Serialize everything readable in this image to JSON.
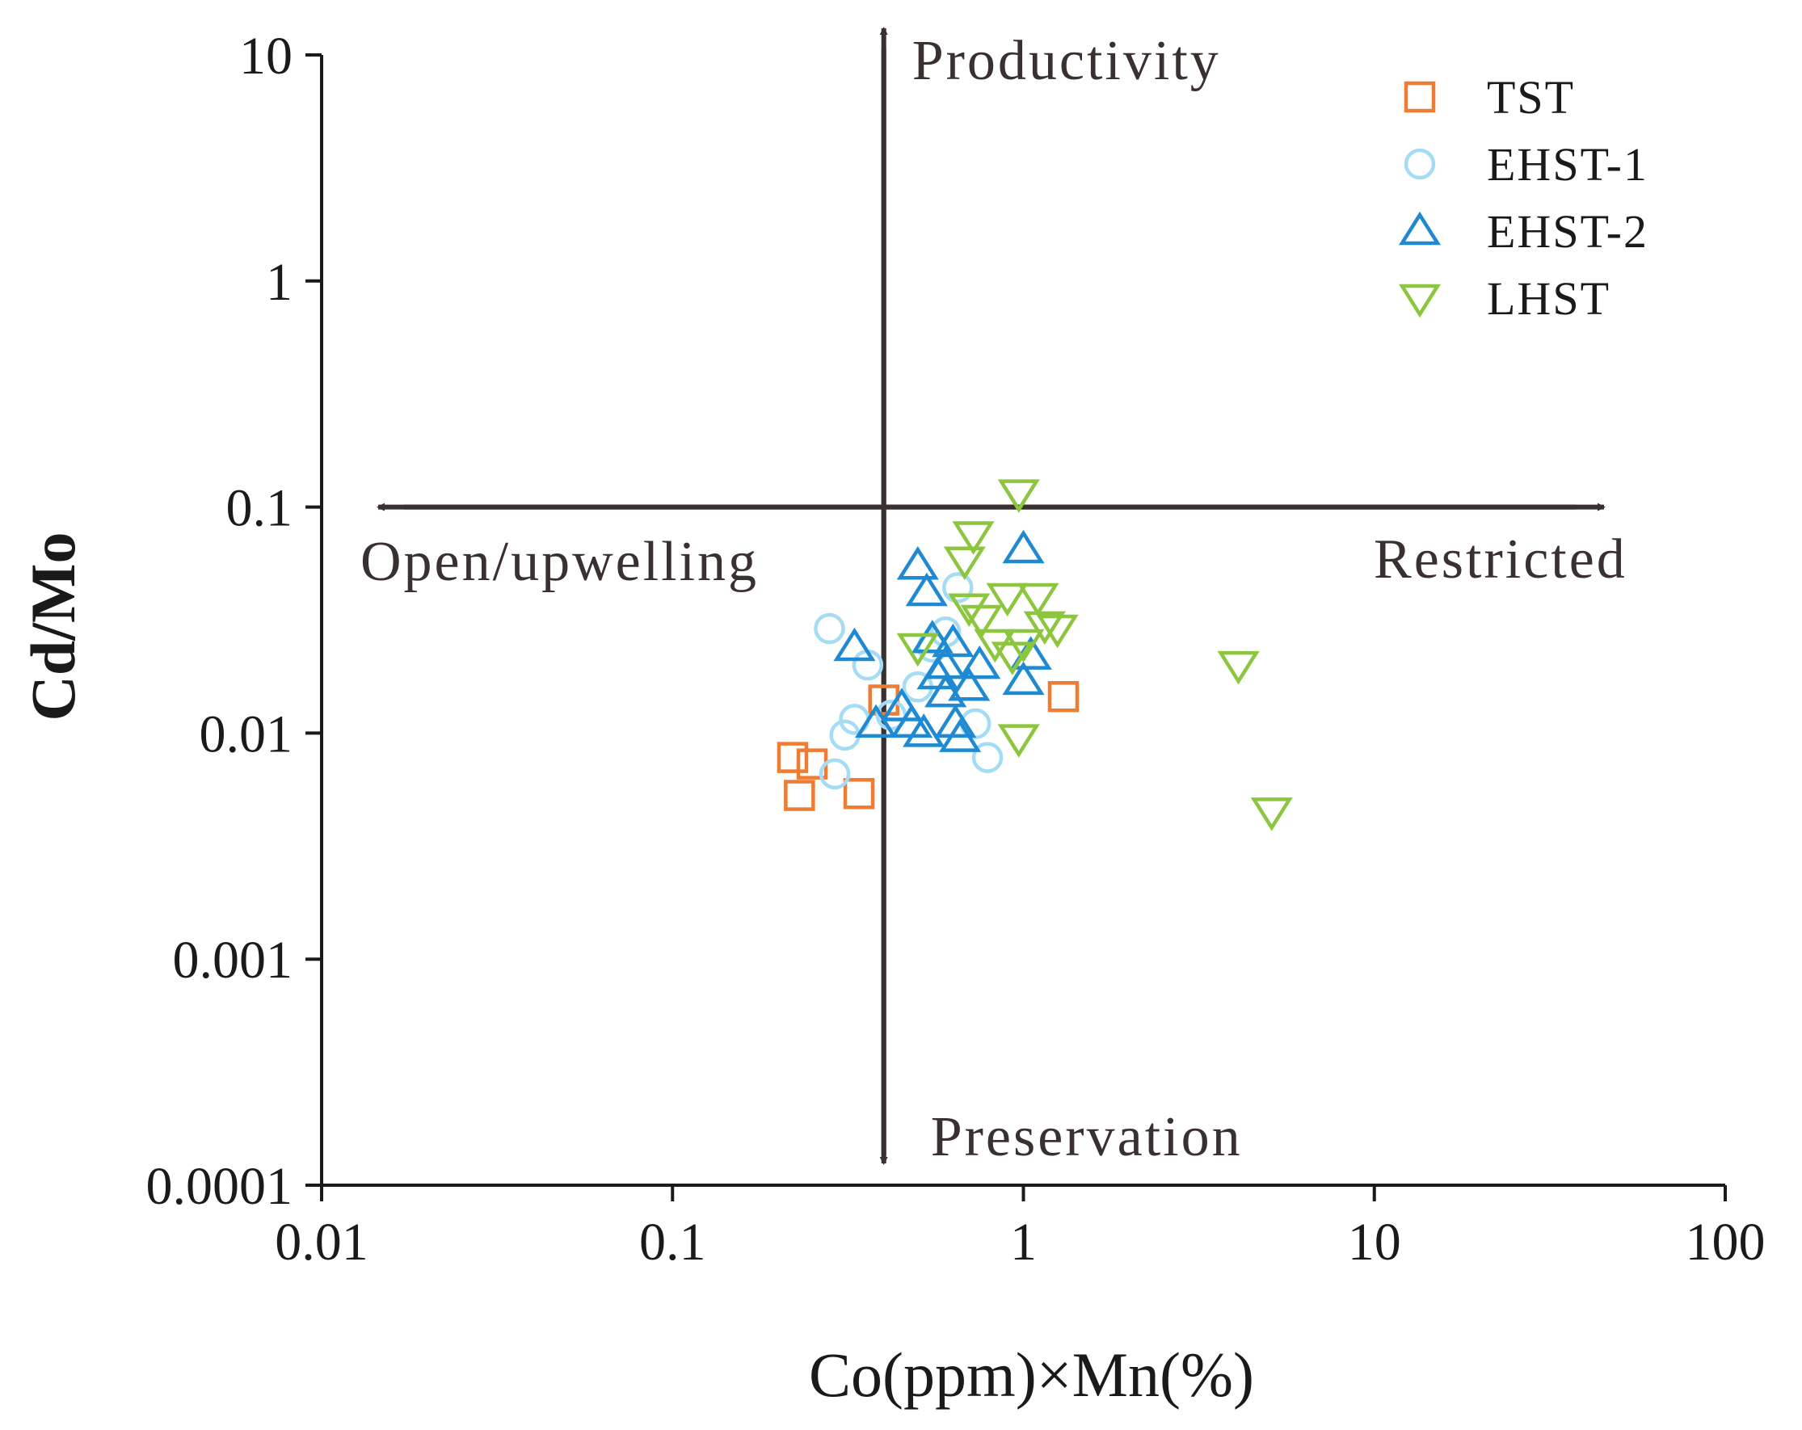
{
  "chart_data": {
    "type": "scatter",
    "title": "",
    "xlabel": "Co(ppm)×Mn(%)",
    "ylabel": "Cd/Mo",
    "xscale": "log",
    "yscale": "log",
    "xlim": [
      0.01,
      100
    ],
    "ylim": [
      0.0001,
      10
    ],
    "x_ticks": [
      0.01,
      0.1,
      1,
      10,
      100
    ],
    "x_tick_labels": [
      "0.01",
      "0.1",
      "1",
      "10",
      "100"
    ],
    "y_ticks": [
      0.0001,
      0.001,
      0.01,
      0.1,
      1,
      10
    ],
    "y_tick_labels": [
      "0.0001",
      "0.001",
      "0.01",
      "0.1",
      "1",
      "10"
    ],
    "grid": false,
    "legend_position": "top-right",
    "divider_x": 0.4,
    "divider_y": 0.1,
    "annotations": {
      "up": "Productivity",
      "down": "Preservation",
      "left": "Open/upwelling",
      "right": "Restricted"
    },
    "colors": {
      "axis": "#1a1a1a",
      "arrow": "#3a3030"
    },
    "series": [
      {
        "name": "TST",
        "marker": "square",
        "color": "#ee7c33",
        "points": [
          [
            0.22,
            0.0078
          ],
          [
            0.25,
            0.0073
          ],
          [
            0.23,
            0.0053
          ],
          [
            0.34,
            0.0054
          ],
          [
            0.4,
            0.014
          ],
          [
            1.3,
            0.0145
          ]
        ]
      },
      {
        "name": "EHST-1",
        "marker": "circle",
        "color": "#a5dcf5",
        "points": [
          [
            0.28,
            0.029
          ],
          [
            0.36,
            0.02
          ],
          [
            0.33,
            0.0115
          ],
          [
            0.31,
            0.0098
          ],
          [
            0.29,
            0.0066
          ],
          [
            0.55,
            0.024
          ],
          [
            0.6,
            0.028
          ],
          [
            0.65,
            0.044
          ],
          [
            0.73,
            0.011
          ],
          [
            0.79,
            0.0078
          ],
          [
            0.5,
            0.016
          ],
          [
            0.42,
            0.012
          ]
        ]
      },
      {
        "name": "EHST-2",
        "marker": "triangle-up",
        "color": "#1f8ad1",
        "points": [
          [
            0.33,
            0.024
          ],
          [
            0.38,
            0.011
          ],
          [
            0.45,
            0.013
          ],
          [
            0.48,
            0.011
          ],
          [
            0.5,
            0.055
          ],
          [
            0.53,
            0.042
          ],
          [
            0.55,
            0.026
          ],
          [
            0.57,
            0.018
          ],
          [
            0.6,
            0.015
          ],
          [
            0.63,
            0.025
          ],
          [
            0.64,
            0.011
          ],
          [
            0.66,
            0.0095
          ],
          [
            0.7,
            0.016
          ],
          [
            0.75,
            0.02
          ],
          [
            1.0,
            0.065
          ],
          [
            1.05,
            0.022
          ],
          [
            1.0,
            0.017
          ],
          [
            0.52,
            0.01
          ],
          [
            0.6,
            0.02
          ]
        ]
      },
      {
        "name": "LHST",
        "marker": "triangle-down",
        "color": "#8cc63e",
        "points": [
          [
            0.97,
            0.115
          ],
          [
            0.72,
            0.075
          ],
          [
            0.68,
            0.058
          ],
          [
            0.7,
            0.036
          ],
          [
            0.76,
            0.032
          ],
          [
            0.9,
            0.04
          ],
          [
            0.83,
            0.025
          ],
          [
            0.93,
            0.022
          ],
          [
            1.0,
            0.025
          ],
          [
            1.1,
            0.04
          ],
          [
            1.15,
            0.03
          ],
          [
            1.25,
            0.029
          ],
          [
            0.5,
            0.024
          ],
          [
            0.97,
            0.0095
          ],
          [
            4.1,
            0.02
          ],
          [
            5.1,
            0.0045
          ]
        ]
      }
    ]
  }
}
